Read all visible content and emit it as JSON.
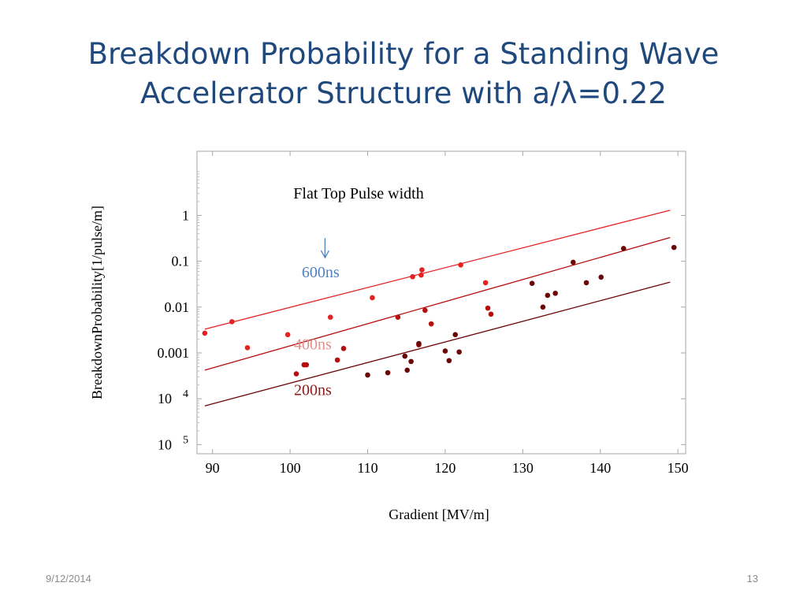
{
  "slide": {
    "title_line1": "Breakdown Probability for a Standing Wave",
    "title_line2": "Accelerator Structure with a/λ=0.22",
    "date": "9/12/2014",
    "page_number": "13"
  },
  "chart_data": {
    "type": "scatter",
    "xlabel": "Gradient [MV/m]",
    "ylabel": "BreakdownProbability[1/pulse/m]",
    "xlim": [
      88,
      151
    ],
    "ylim_log10": [
      -5.2,
      1.4
    ],
    "y_scale": "log",
    "grid": false,
    "x_ticks": [
      90,
      100,
      110,
      120,
      130,
      140,
      150
    ],
    "y_ticks": [
      {
        "value": 1,
        "label": "1"
      },
      {
        "value": 0.1,
        "label": "0.1"
      },
      {
        "value": 0.01,
        "label": "0.01"
      },
      {
        "value": 0.001,
        "label": "0.001"
      },
      {
        "value": 0.0001,
        "label": "10",
        "exp": "4"
      },
      {
        "value": 1e-05,
        "label": "10",
        "exp": "5"
      }
    ],
    "annotations": {
      "header": "Flat Top Pulse width",
      "arrow_from": [
        104.5,
        0.32
      ],
      "arrow_to": [
        104.5,
        0.12
      ]
    },
    "series": [
      {
        "name": "600ns",
        "color": "#e52222",
        "label_color": "#4f81bd",
        "label_at": [
          101.5,
          0.045
        ],
        "fit": [
          [
            89,
            0.0033
          ],
          [
            149,
            1.3
          ]
        ],
        "points": [
          [
            89,
            0.0027
          ],
          [
            92.5,
            0.0048
          ],
          [
            94.5,
            0.0013
          ],
          [
            99.7,
            0.0025
          ],
          [
            105.2,
            0.006
          ],
          [
            110.6,
            0.016
          ],
          [
            115.8,
            0.046
          ],
          [
            116.9,
            0.05
          ],
          [
            117,
            0.065
          ],
          [
            122,
            0.083
          ],
          [
            125.2,
            0.034
          ]
        ]
      },
      {
        "name": "400ns",
        "color": "#b80d0d",
        "label_color": "#e0908a",
        "label_at": [
          100.5,
          0.0012
        ],
        "fit": [
          [
            89,
            0.00042
          ],
          [
            149,
            0.33
          ]
        ],
        "points": [
          [
            100.8,
            0.00035
          ],
          [
            101.8,
            0.00055
          ],
          [
            102.1,
            0.00055
          ],
          [
            106.1,
            0.0007
          ],
          [
            106.9,
            0.00125
          ],
          [
            113.9,
            0.006
          ],
          [
            116.6,
            0.0015
          ],
          [
            117.4,
            0.0085
          ],
          [
            118.2,
            0.0043
          ],
          [
            125.5,
            0.0095
          ],
          [
            125.9,
            0.007
          ]
        ]
      },
      {
        "name": "200ns",
        "color": "#6b0606",
        "label_color": "#8b1a1a",
        "label_at": [
          100.5,
          0.00012
        ],
        "fit": [
          [
            89,
            7e-05
          ],
          [
            149,
            0.035
          ]
        ],
        "points": [
          [
            110,
            0.00033
          ],
          [
            112.6,
            0.00037
          ],
          [
            114.8,
            0.00085
          ],
          [
            115.1,
            0.00042
          ],
          [
            115.6,
            0.00065
          ],
          [
            116.6,
            0.0016
          ],
          [
            120,
            0.0011
          ],
          [
            120.5,
            0.00068
          ],
          [
            121.3,
            0.0025
          ],
          [
            121.8,
            0.00105
          ],
          [
            131.2,
            0.033
          ],
          [
            132.6,
            0.01
          ],
          [
            133.2,
            0.018
          ],
          [
            134.2,
            0.02
          ],
          [
            136.5,
            0.095
          ],
          [
            138.2,
            0.034
          ],
          [
            140.1,
            0.045
          ],
          [
            143,
            0.19
          ],
          [
            149.5,
            0.2
          ]
        ]
      }
    ]
  }
}
